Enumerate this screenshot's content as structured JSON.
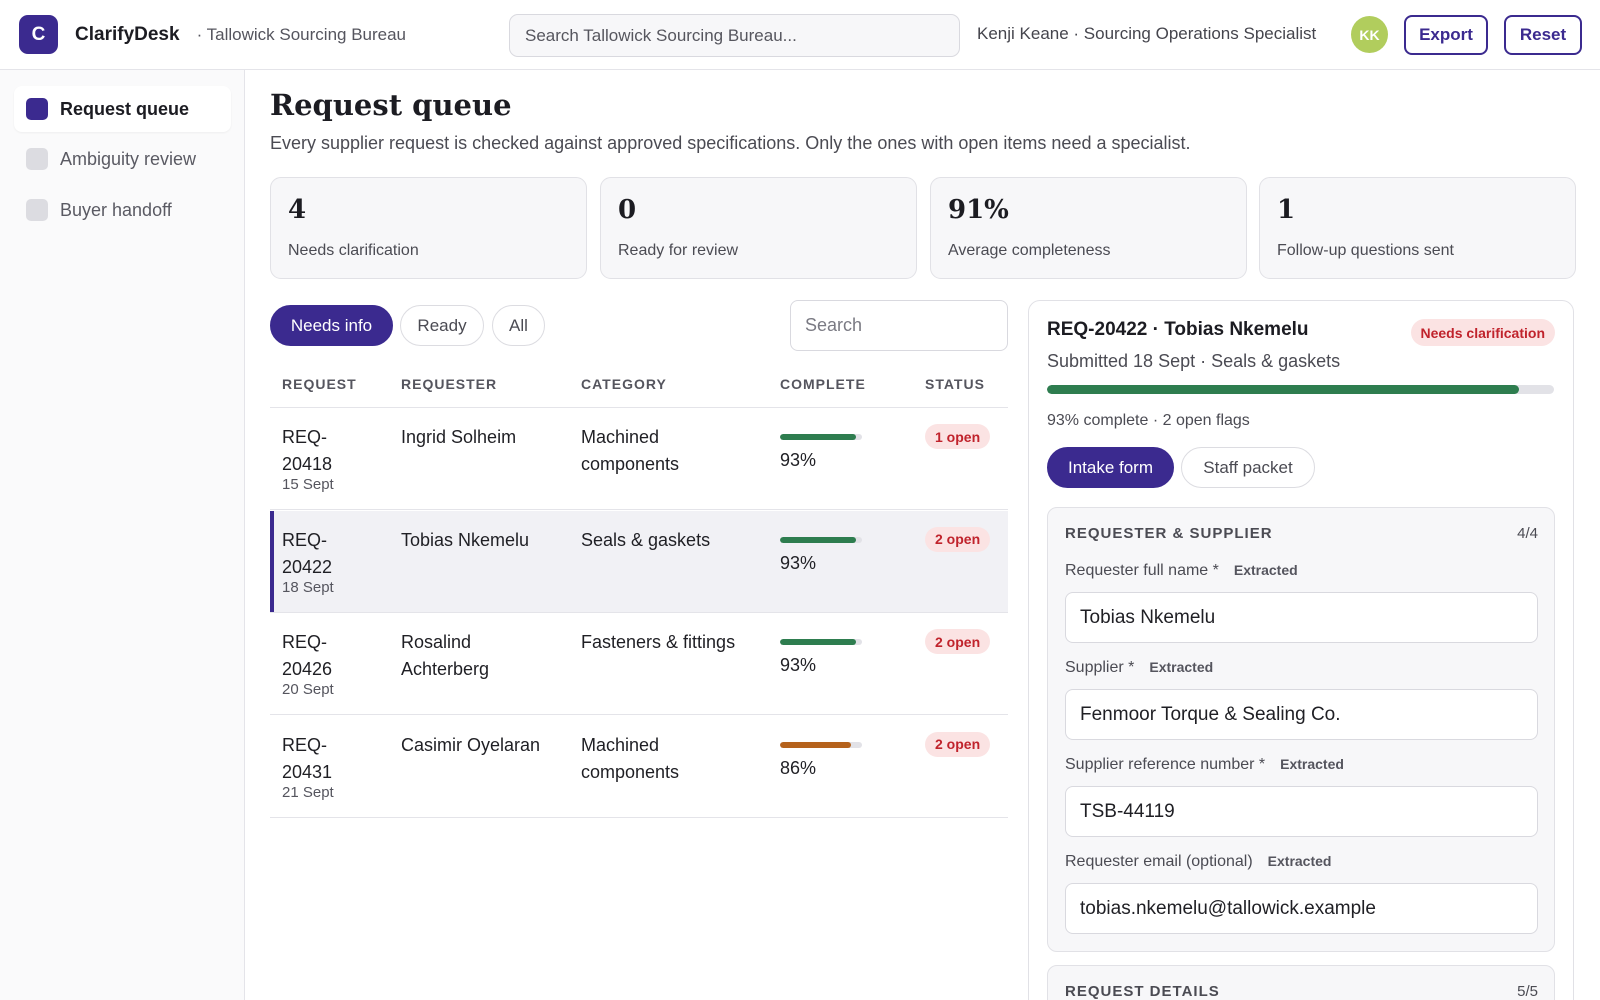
{
  "header": {
    "logo_letter": "C",
    "app_name": "ClarifyDesk",
    "org": "· Tallowick Sourcing Bureau",
    "search_placeholder": "Search Tallowick Sourcing Bureau...",
    "user": "Kenji Keane · Sourcing Operations Specialist",
    "avatar_initials": "KK",
    "export_label": "Export",
    "reset_label": "Reset"
  },
  "sidebar": {
    "items": [
      {
        "label": "Request queue",
        "active": true
      },
      {
        "label": "Ambiguity review",
        "active": false
      },
      {
        "label": "Buyer handoff",
        "active": false
      }
    ]
  },
  "main": {
    "title": "Request queue",
    "subtitle": "Every supplier request is checked against approved specifications. Only the ones with open items need a specialist.",
    "stats": [
      {
        "value": "4",
        "label": "Needs clarification"
      },
      {
        "value": "0",
        "label": "Ready for review"
      },
      {
        "value": "91%",
        "label": "Average completeness"
      },
      {
        "value": "1",
        "label": "Follow-up questions sent"
      }
    ],
    "filters": [
      {
        "label": "Needs info",
        "active": true
      },
      {
        "label": "Ready",
        "active": false
      },
      {
        "label": "All",
        "active": false
      }
    ],
    "search_placeholder": "Search",
    "columns": [
      "REQUEST",
      "REQUESTER",
      "CATEGORY",
      "COMPLETE",
      "STATUS"
    ],
    "rows": [
      {
        "id_line1": "REQ-",
        "id_line2": "20418",
        "date": "15 Sept",
        "requester_line1": "Ingrid Solheim",
        "requester_line2": "",
        "category_line1": "Machined",
        "category_line2": "components",
        "complete": "93%",
        "complete_value": 0.93,
        "bar_color": "#2e7d4f",
        "status": "1 open",
        "selected": false
      },
      {
        "id_line1": "REQ-",
        "id_line2": "20422",
        "date": "18 Sept",
        "requester_line1": "Tobias Nkemelu",
        "requester_line2": "",
        "category_line1": "Seals & gaskets",
        "category_line2": "",
        "complete": "93%",
        "complete_value": 0.93,
        "bar_color": "#2e7d4f",
        "status": "2 open",
        "selected": true
      },
      {
        "id_line1": "REQ-",
        "id_line2": "20426",
        "date": "20 Sept",
        "requester_line1": "Rosalind",
        "requester_line2": "Achterberg",
        "category_line1": "Fasteners & fittings",
        "category_line2": "",
        "complete": "93%",
        "complete_value": 0.93,
        "bar_color": "#2e7d4f",
        "status": "2 open",
        "selected": false
      },
      {
        "id_line1": "REQ-",
        "id_line2": "20431",
        "date": "21 Sept",
        "requester_line1": "Casimir Oyelaran",
        "requester_line2": "",
        "category_line1": "Machined",
        "category_line2": "components",
        "complete": "86%",
        "complete_value": 0.86,
        "bar_color": "#b5621c",
        "status": "2 open",
        "selected": false
      }
    ]
  },
  "detail": {
    "title": "REQ-20422 · Tobias Nkemelu",
    "badge": "Needs clarification",
    "subtitle": "Submitted 18 Sept · Seals & gaskets",
    "progress_value": 0.93,
    "meta": "93% complete · 2 open flags",
    "tabs": [
      {
        "label": "Intake form",
        "active": true
      },
      {
        "label": "Staff packet",
        "active": false
      }
    ],
    "section1": {
      "title": "REQUESTER & SUPPLIER",
      "count": "4/4",
      "fields": [
        {
          "label": "Requester full name *",
          "tag": "Extracted",
          "value": "Tobias Nkemelu"
        },
        {
          "label": "Supplier *",
          "tag": "Extracted",
          "value": "Fenmoor Torque & Sealing Co."
        },
        {
          "label": "Supplier reference number *",
          "tag": "Extracted",
          "value": "TSB-44119"
        },
        {
          "label": "Requester email (optional)",
          "tag": "Extracted",
          "value": "tobias.nkemelu@tallowick.example"
        }
      ]
    },
    "section2": {
      "title": "REQUEST DETAILS",
      "count": "5/5"
    }
  },
  "colors": {
    "accent": "#3b2a8f",
    "success": "#2e7d4f",
    "warning": "#b5621c",
    "danger": "#c0232c",
    "avatar": "#b1cd5d"
  }
}
